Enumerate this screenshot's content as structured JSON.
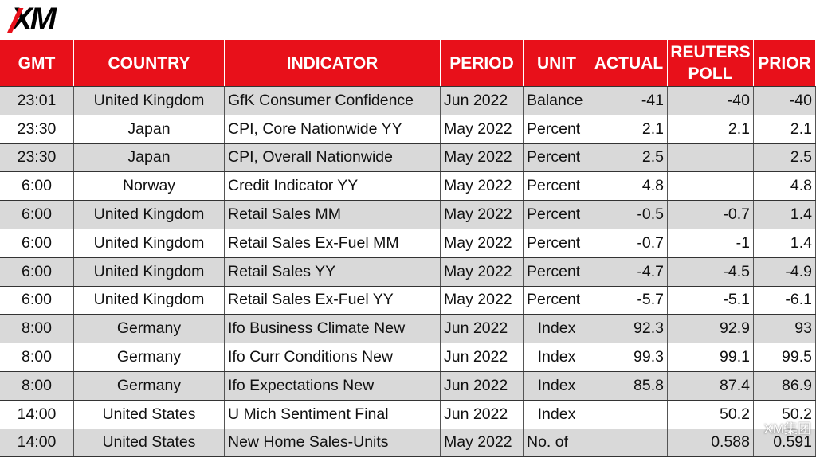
{
  "logo": "XM",
  "table": {
    "header": [
      "GMT",
      "COUNTRY",
      "INDICATOR",
      "PERIOD",
      "UNIT",
      "ACTUAL",
      "REUTERS POLL",
      "PRIOR"
    ],
    "rows": [
      [
        "23:01",
        "United Kingdom",
        "GfK Consumer Confidence",
        "Jun 2022",
        "Balance",
        "-41",
        "-40",
        "-40"
      ],
      [
        "23:30",
        "Japan",
        "CPI, Core Nationwide YY",
        "May 2022",
        "Percent",
        "2.1",
        "2.1",
        "2.1"
      ],
      [
        "23:30",
        "Japan",
        "CPI, Overall Nationwide",
        "May 2022",
        "Percent",
        "2.5",
        null,
        "2.5"
      ],
      [
        "6:00",
        "Norway",
        "Credit Indicator YY",
        "May 2022",
        "Percent",
        "4.8",
        null,
        "4.8"
      ],
      [
        "6:00",
        "United Kingdom",
        "Retail Sales MM",
        "May 2022",
        "Percent",
        "-0.5",
        "-0.7",
        "1.4"
      ],
      [
        "6:00",
        "United Kingdom",
        "Retail Sales Ex-Fuel MM",
        "May 2022",
        "Percent",
        "-0.7",
        "-1",
        "1.4"
      ],
      [
        "6:00",
        "United Kingdom",
        "Retail Sales YY",
        "May 2022",
        "Percent",
        "-4.7",
        "-4.5",
        "-4.9"
      ],
      [
        "6:00",
        "United Kingdom",
        "Retail Sales Ex-Fuel YY",
        "May 2022",
        "Percent",
        "-5.7",
        "-5.1",
        "-6.1"
      ],
      [
        "8:00",
        "Germany",
        "Ifo Business Climate New",
        "Jun 2022",
        "Index",
        "92.3",
        "92.9",
        "93"
      ],
      [
        "8:00",
        "Germany",
        "Ifo Curr Conditions New",
        "Jun 2022",
        "Index",
        "99.3",
        "99.1",
        "99.5"
      ],
      [
        "8:00",
        "Germany",
        "Ifo Expectations New",
        "Jun 2022",
        "Index",
        "85.8",
        "87.4",
        "86.9"
      ],
      [
        "14:00",
        "United States",
        "U Mich Sentiment Final",
        "Jun 2022",
        "Index",
        null,
        "50.2",
        "50.2"
      ],
      [
        "14:00",
        "United States",
        "New Home Sales-Units",
        "May 2022",
        "No. of",
        null,
        "0.588",
        "0.591"
      ]
    ]
  },
  "watermark": "XM集团"
}
